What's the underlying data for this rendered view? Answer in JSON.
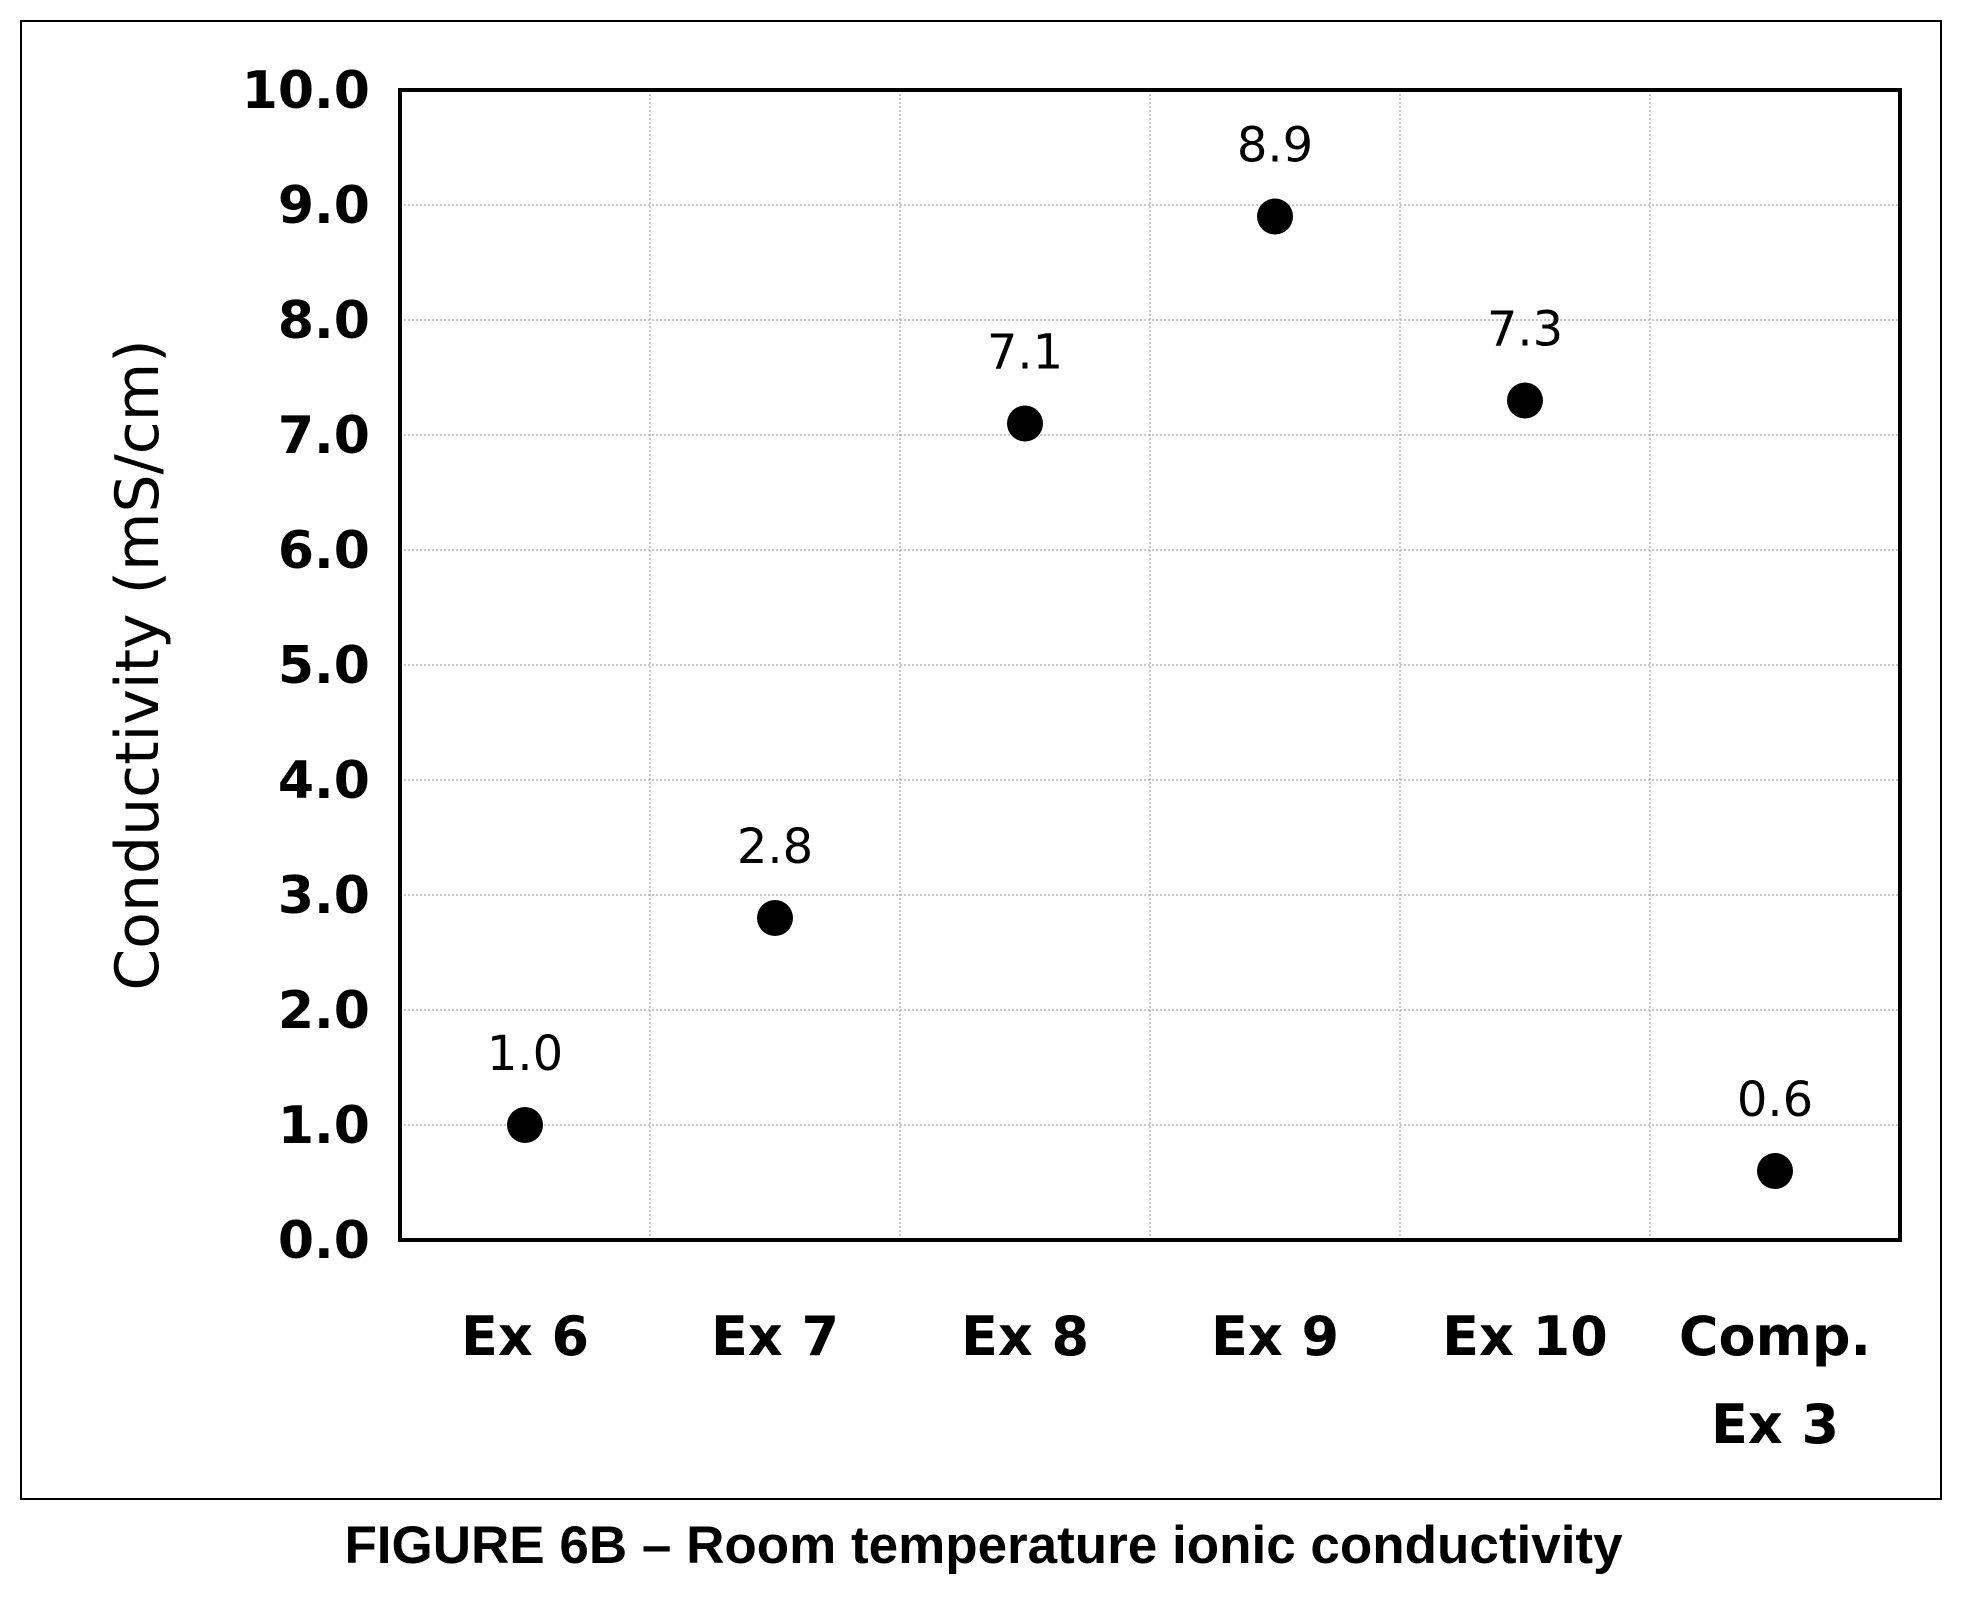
{
  "caption": "FIGURE 6B – Room temperature ionic conductivity",
  "chart_data": {
    "type": "scatter",
    "title": "",
    "xlabel": "",
    "ylabel": "Conductivity (mS/cm)",
    "ylim": [
      0,
      10
    ],
    "yticks": [
      "0.0",
      "1.0",
      "2.0",
      "3.0",
      "4.0",
      "5.0",
      "6.0",
      "7.0",
      "8.0",
      "9.0",
      "10.0"
    ],
    "grid": true,
    "categories": [
      [
        "Ex 6"
      ],
      [
        "Ex 7"
      ],
      [
        "Ex 8"
      ],
      [
        "Ex 9"
      ],
      [
        "Ex 10"
      ],
      [
        "Comp.",
        "Ex 3"
      ]
    ],
    "values": [
      1.0,
      2.8,
      7.1,
      8.9,
      7.3,
      0.6
    ],
    "data_labels": [
      "1.0",
      "2.8",
      "7.1",
      "8.9",
      "7.3",
      "0.6"
    ],
    "marker_color": "#000000"
  }
}
